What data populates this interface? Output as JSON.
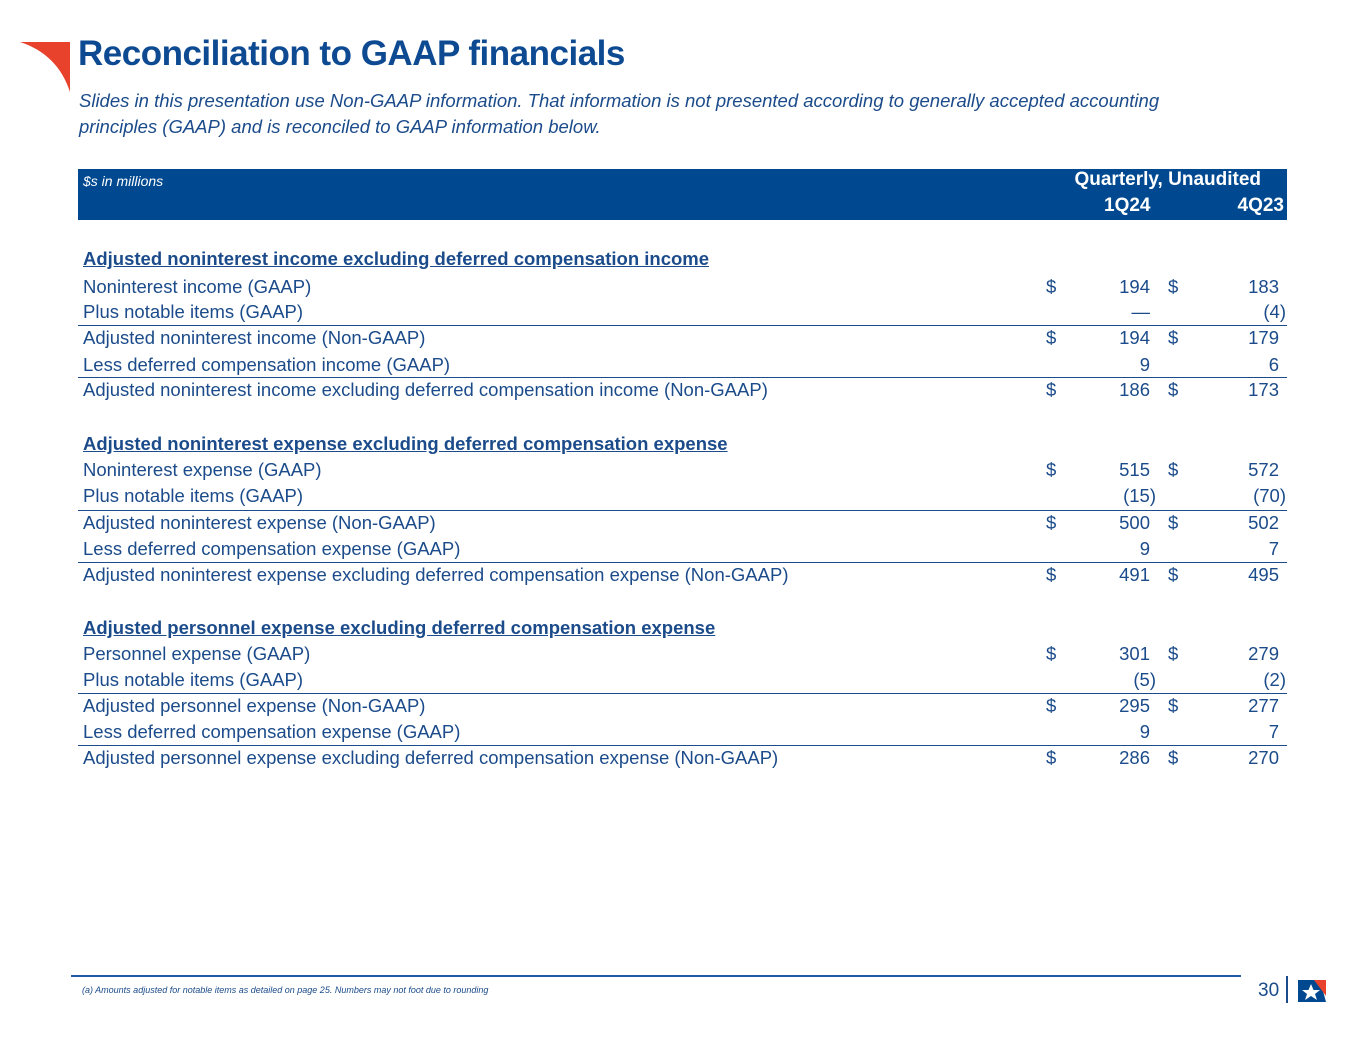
{
  "title": "Reconciliation to GAAP financials",
  "subtitle": "Slides in this presentation use Non-GAAP information. That information is not presented according to generally accepted accounting principles (GAAP) and is reconciled to GAAP information below.",
  "table": {
    "units": "$s in millions",
    "group_header": "Quarterly, Unaudited",
    "columns": [
      "1Q24",
      "4Q23"
    ],
    "rows": [
      {
        "type": "section",
        "label": "Adjusted noninterest income excluding deferred compensation income"
      },
      {
        "label": "Noninterest income (GAAP)",
        "d": "$",
        "v1": "194",
        "v2": "183"
      },
      {
        "label": "Plus notable items (GAAP)",
        "d": "",
        "v1": "—",
        "v2": "(4)"
      },
      {
        "label": "Adjusted noninterest income (Non-GAAP)",
        "d": "$",
        "v1": "194",
        "v2": "179",
        "border": true
      },
      {
        "label": "Less deferred compensation income (GAAP)",
        "d": "",
        "v1": "9",
        "v2": "6"
      },
      {
        "label": "Adjusted noninterest income excluding deferred compensation income (Non-GAAP)",
        "d": "$",
        "v1": "186",
        "v2": "173",
        "border": true
      },
      {
        "type": "section",
        "label": "Adjusted noninterest expense excluding deferred compensation expense"
      },
      {
        "label": "Noninterest expense (GAAP)",
        "d": "$",
        "v1": "515",
        "v2": "572"
      },
      {
        "label": "Plus notable items (GAAP)",
        "d": "",
        "v1": "(15)",
        "v2": "(70)"
      },
      {
        "label": "Adjusted noninterest expense (Non-GAAP)",
        "d": "$",
        "v1": "500",
        "v2": "502",
        "border": true
      },
      {
        "label": "Less deferred compensation expense (GAAP)",
        "d": "",
        "v1": "9",
        "v2": "7"
      },
      {
        "label": "Adjusted noninterest expense excluding deferred compensation expense (Non-GAAP)",
        "d": "$",
        "v1": "491",
        "v2": "495",
        "border": true
      },
      {
        "type": "section",
        "label": "Adjusted personnel expense excluding deferred compensation expense"
      },
      {
        "label": "Personnel expense (GAAP)",
        "d": "$",
        "v1": "301",
        "v2": "279"
      },
      {
        "label": "Plus notable items (GAAP)",
        "d": "",
        "v1": "(5)",
        "v2": "(2)"
      },
      {
        "label": "Adjusted personnel expense (Non-GAAP)",
        "d": "$",
        "v1": "295",
        "v2": "277",
        "border": true
      },
      {
        "label": "Less deferred compensation expense (GAAP)",
        "d": "",
        "v1": "9",
        "v2": "7"
      },
      {
        "label": "Adjusted personnel expense excluding deferred compensation expense (Non-GAAP)",
        "d": "$",
        "v1": "286",
        "v2": "270",
        "border": true
      }
    ]
  },
  "footnote": "(a) Amounts adjusted for notable items as detailed on page 25. Numbers may not foot due to rounding",
  "page_number": "30",
  "colors": {
    "brand_blue": "#004990",
    "accent_red": "#e8412c",
    "text": "#1b4b8a"
  }
}
